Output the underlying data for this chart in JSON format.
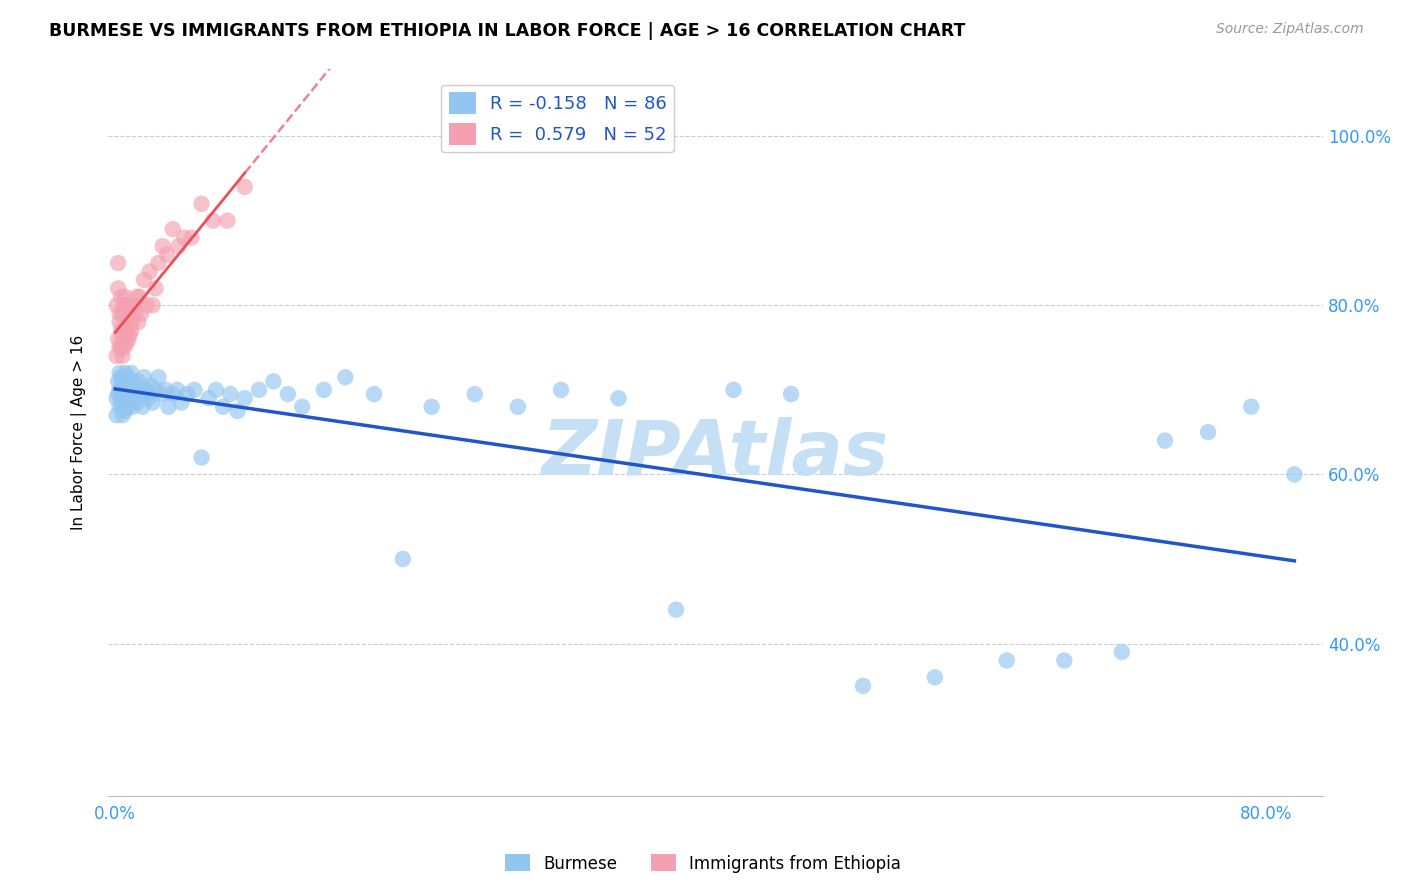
{
  "title": "BURMESE VS IMMIGRANTS FROM ETHIOPIA IN LABOR FORCE | AGE > 16 CORRELATION CHART",
  "source": "Source: ZipAtlas.com",
  "ylabel": "In Labor Force | Age > 16",
  "y_ticks": [
    0.4,
    0.6,
    0.8,
    1.0
  ],
  "y_tick_labels": [
    "40.0%",
    "60.0%",
    "80.0%",
    "100.0%"
  ],
  "xlim": [
    -0.005,
    0.84
  ],
  "ylim": [
    0.22,
    1.08
  ],
  "burmese_R": -0.158,
  "burmese_N": 86,
  "ethiopia_R": 0.579,
  "ethiopia_N": 52,
  "burmese_color": "#92C5F0",
  "ethiopia_color": "#F4A0B0",
  "burmese_line_color": "#2255CC",
  "ethiopia_line_color": "#E8505A",
  "watermark": "ZIPAtlas",
  "watermark_color": "#C5DFF5",
  "legend_label_burmese": "Burmese",
  "legend_label_ethiopia": "Immigrants from Ethiopia",
  "burmese_x": [
    0.001,
    0.001,
    0.002,
    0.002,
    0.003,
    0.003,
    0.003,
    0.004,
    0.004,
    0.004,
    0.005,
    0.005,
    0.005,
    0.005,
    0.006,
    0.006,
    0.006,
    0.007,
    0.007,
    0.007,
    0.008,
    0.008,
    0.008,
    0.009,
    0.009,
    0.01,
    0.01,
    0.011,
    0.011,
    0.012,
    0.012,
    0.013,
    0.014,
    0.015,
    0.016,
    0.017,
    0.018,
    0.019,
    0.02,
    0.021,
    0.022,
    0.023,
    0.025,
    0.026,
    0.028,
    0.03,
    0.032,
    0.035,
    0.037,
    0.04,
    0.043,
    0.046,
    0.05,
    0.055,
    0.06,
    0.065,
    0.07,
    0.075,
    0.08,
    0.085,
    0.09,
    0.1,
    0.11,
    0.12,
    0.13,
    0.145,
    0.16,
    0.18,
    0.2,
    0.22,
    0.25,
    0.28,
    0.31,
    0.35,
    0.39,
    0.43,
    0.47,
    0.52,
    0.57,
    0.62,
    0.66,
    0.7,
    0.73,
    0.76,
    0.79,
    0.82
  ],
  "burmese_y": [
    0.69,
    0.67,
    0.71,
    0.695,
    0.72,
    0.7,
    0.68,
    0.715,
    0.69,
    0.7,
    0.71,
    0.695,
    0.68,
    0.67,
    0.715,
    0.7,
    0.685,
    0.72,
    0.695,
    0.675,
    0.71,
    0.69,
    0.68,
    0.715,
    0.695,
    0.7,
    0.685,
    0.72,
    0.7,
    0.68,
    0.71,
    0.695,
    0.7,
    0.685,
    0.71,
    0.695,
    0.7,
    0.68,
    0.715,
    0.7,
    0.695,
    0.69,
    0.705,
    0.685,
    0.7,
    0.715,
    0.695,
    0.7,
    0.68,
    0.695,
    0.7,
    0.685,
    0.695,
    0.7,
    0.62,
    0.69,
    0.7,
    0.68,
    0.695,
    0.675,
    0.69,
    0.7,
    0.71,
    0.695,
    0.68,
    0.7,
    0.715,
    0.695,
    0.5,
    0.68,
    0.695,
    0.68,
    0.7,
    0.69,
    0.44,
    0.7,
    0.695,
    0.35,
    0.36,
    0.38,
    0.38,
    0.39,
    0.64,
    0.65,
    0.68,
    0.6
  ],
  "ethiopia_x": [
    0.001,
    0.001,
    0.002,
    0.002,
    0.002,
    0.003,
    0.003,
    0.003,
    0.004,
    0.004,
    0.004,
    0.005,
    0.005,
    0.005,
    0.006,
    0.006,
    0.006,
    0.007,
    0.007,
    0.007,
    0.008,
    0.008,
    0.008,
    0.009,
    0.009,
    0.01,
    0.01,
    0.011,
    0.011,
    0.012,
    0.013,
    0.014,
    0.015,
    0.016,
    0.017,
    0.018,
    0.02,
    0.022,
    0.024,
    0.026,
    0.028,
    0.03,
    0.033,
    0.036,
    0.04,
    0.044,
    0.048,
    0.053,
    0.06,
    0.068,
    0.078,
    0.09
  ],
  "ethiopia_y": [
    0.74,
    0.8,
    0.85,
    0.82,
    0.76,
    0.79,
    0.75,
    0.78,
    0.81,
    0.77,
    0.75,
    0.79,
    0.76,
    0.74,
    0.8,
    0.77,
    0.75,
    0.81,
    0.78,
    0.76,
    0.8,
    0.77,
    0.755,
    0.79,
    0.76,
    0.78,
    0.765,
    0.79,
    0.77,
    0.78,
    0.8,
    0.79,
    0.81,
    0.78,
    0.81,
    0.79,
    0.83,
    0.8,
    0.84,
    0.8,
    0.82,
    0.85,
    0.87,
    0.86,
    0.89,
    0.87,
    0.88,
    0.88,
    0.92,
    0.9,
    0.9,
    0.94
  ]
}
